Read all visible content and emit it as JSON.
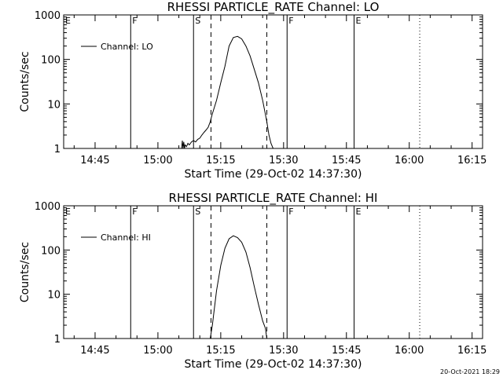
{
  "chart_data": [
    {
      "type": "line",
      "title": "RHESSI PARTICLE_RATE Channel: LO",
      "xlabel": "Start Time (29-Oct-02 14:37:30)",
      "ylabel": "Counts/sec",
      "yscale": "log",
      "ylim": [
        1,
        1000
      ],
      "xlim_minutes_after_start": [
        0,
        100
      ],
      "y_ticks": [
        "1",
        "10",
        "100",
        "1000"
      ],
      "x_ticks": [
        "14:45",
        "15:00",
        "15:15",
        "15:30",
        "15:45",
        "16:00",
        "16:15"
      ],
      "legend": {
        "entries": [
          "Channel: LO"
        ],
        "placement": "upper-left"
      },
      "flags": [
        {
          "label": "E",
          "time": "14:37:30",
          "style": "dotted"
        },
        {
          "label": "F",
          "time": "14:53:30",
          "style": "solid"
        },
        {
          "label": "S",
          "time": "15:08:30",
          "style": "solid"
        },
        {
          "label": "",
          "time": "15:12:40",
          "style": "dashed"
        },
        {
          "label": "",
          "time": "15:26:00",
          "style": "dashed"
        },
        {
          "label": "F",
          "time": "15:30:50",
          "style": "solid"
        },
        {
          "label": "E",
          "time": "15:46:50",
          "style": "solid"
        },
        {
          "label": "",
          "time": "16:02:30",
          "style": "dotted"
        }
      ],
      "series": [
        {
          "name": "Channel: LO",
          "x": [
            "15:05:40",
            "15:05:50",
            "15:06:00",
            "15:06:10",
            "15:06:20",
            "15:06:30",
            "15:06:50",
            "15:07:10",
            "15:07:30",
            "15:08:00",
            "15:08:30",
            "15:09:00",
            "15:09:30",
            "15:10:00",
            "15:10:30",
            "15:11:00",
            "15:11:30",
            "15:12:00",
            "15:12:30",
            "15:13:00",
            "15:14:00",
            "15:15:00",
            "15:16:00",
            "15:16:30",
            "15:17:00",
            "15:18:00",
            "15:19:00",
            "15:20:00",
            "15:21:00",
            "15:22:00",
            "15:23:00",
            "15:24:00",
            "15:25:00",
            "15:26:00",
            "15:26:30",
            "15:27:00",
            "15:27:30"
          ],
          "y": [
            1.0,
            1.5,
            1.0,
            1.4,
            1.0,
            1.2,
            1.1,
            1.3,
            1.2,
            1.4,
            1.5,
            1.4,
            1.6,
            1.7,
            2.0,
            2.3,
            2.6,
            3.0,
            4.0,
            6.0,
            12,
            30,
            70,
            120,
            200,
            310,
            330,
            290,
            200,
            120,
            60,
            30,
            12,
            4.0,
            2.0,
            1.3,
            1.0
          ]
        }
      ]
    },
    {
      "type": "line",
      "title": "RHESSI PARTICLE_RATE Channel: HI",
      "xlabel": "Start Time (29-Oct-02 14:37:30)",
      "ylabel": "Counts/sec",
      "yscale": "log",
      "ylim": [
        1,
        1000
      ],
      "xlim_minutes_after_start": [
        0,
        100
      ],
      "y_ticks": [
        "1",
        "10",
        "100",
        "1000"
      ],
      "x_ticks": [
        "14:45",
        "15:00",
        "15:15",
        "15:30",
        "15:45",
        "16:00",
        "16:15"
      ],
      "legend": {
        "entries": [
          "Channel: HI"
        ],
        "placement": "upper-left"
      },
      "flags": [
        {
          "label": "E",
          "time": "14:37:30",
          "style": "dotted"
        },
        {
          "label": "F",
          "time": "14:53:30",
          "style": "solid"
        },
        {
          "label": "S",
          "time": "15:08:30",
          "style": "solid"
        },
        {
          "label": "",
          "time": "15:12:40",
          "style": "dashed"
        },
        {
          "label": "",
          "time": "15:26:00",
          "style": "dashed"
        },
        {
          "label": "F",
          "time": "15:30:50",
          "style": "solid"
        },
        {
          "label": "E",
          "time": "15:46:50",
          "style": "solid"
        },
        {
          "label": "",
          "time": "16:02:30",
          "style": "dotted"
        }
      ],
      "series": [
        {
          "name": "Channel: HI",
          "x": [
            "15:12:30",
            "15:13:00",
            "15:13:30",
            "15:14:00",
            "15:15:00",
            "15:16:00",
            "15:17:00",
            "15:18:00",
            "15:19:00",
            "15:20:00",
            "15:21:00",
            "15:22:00",
            "15:23:00",
            "15:24:00",
            "15:25:00",
            "15:25:40",
            "15:26:00"
          ],
          "y": [
            1.0,
            2.0,
            5.0,
            12,
            45,
            110,
            180,
            210,
            190,
            150,
            90,
            40,
            15,
            6.0,
            2.5,
            1.7,
            1.0
          ]
        }
      ]
    }
  ],
  "footer": {
    "timestamp": "20-Oct-2021 18:29"
  }
}
